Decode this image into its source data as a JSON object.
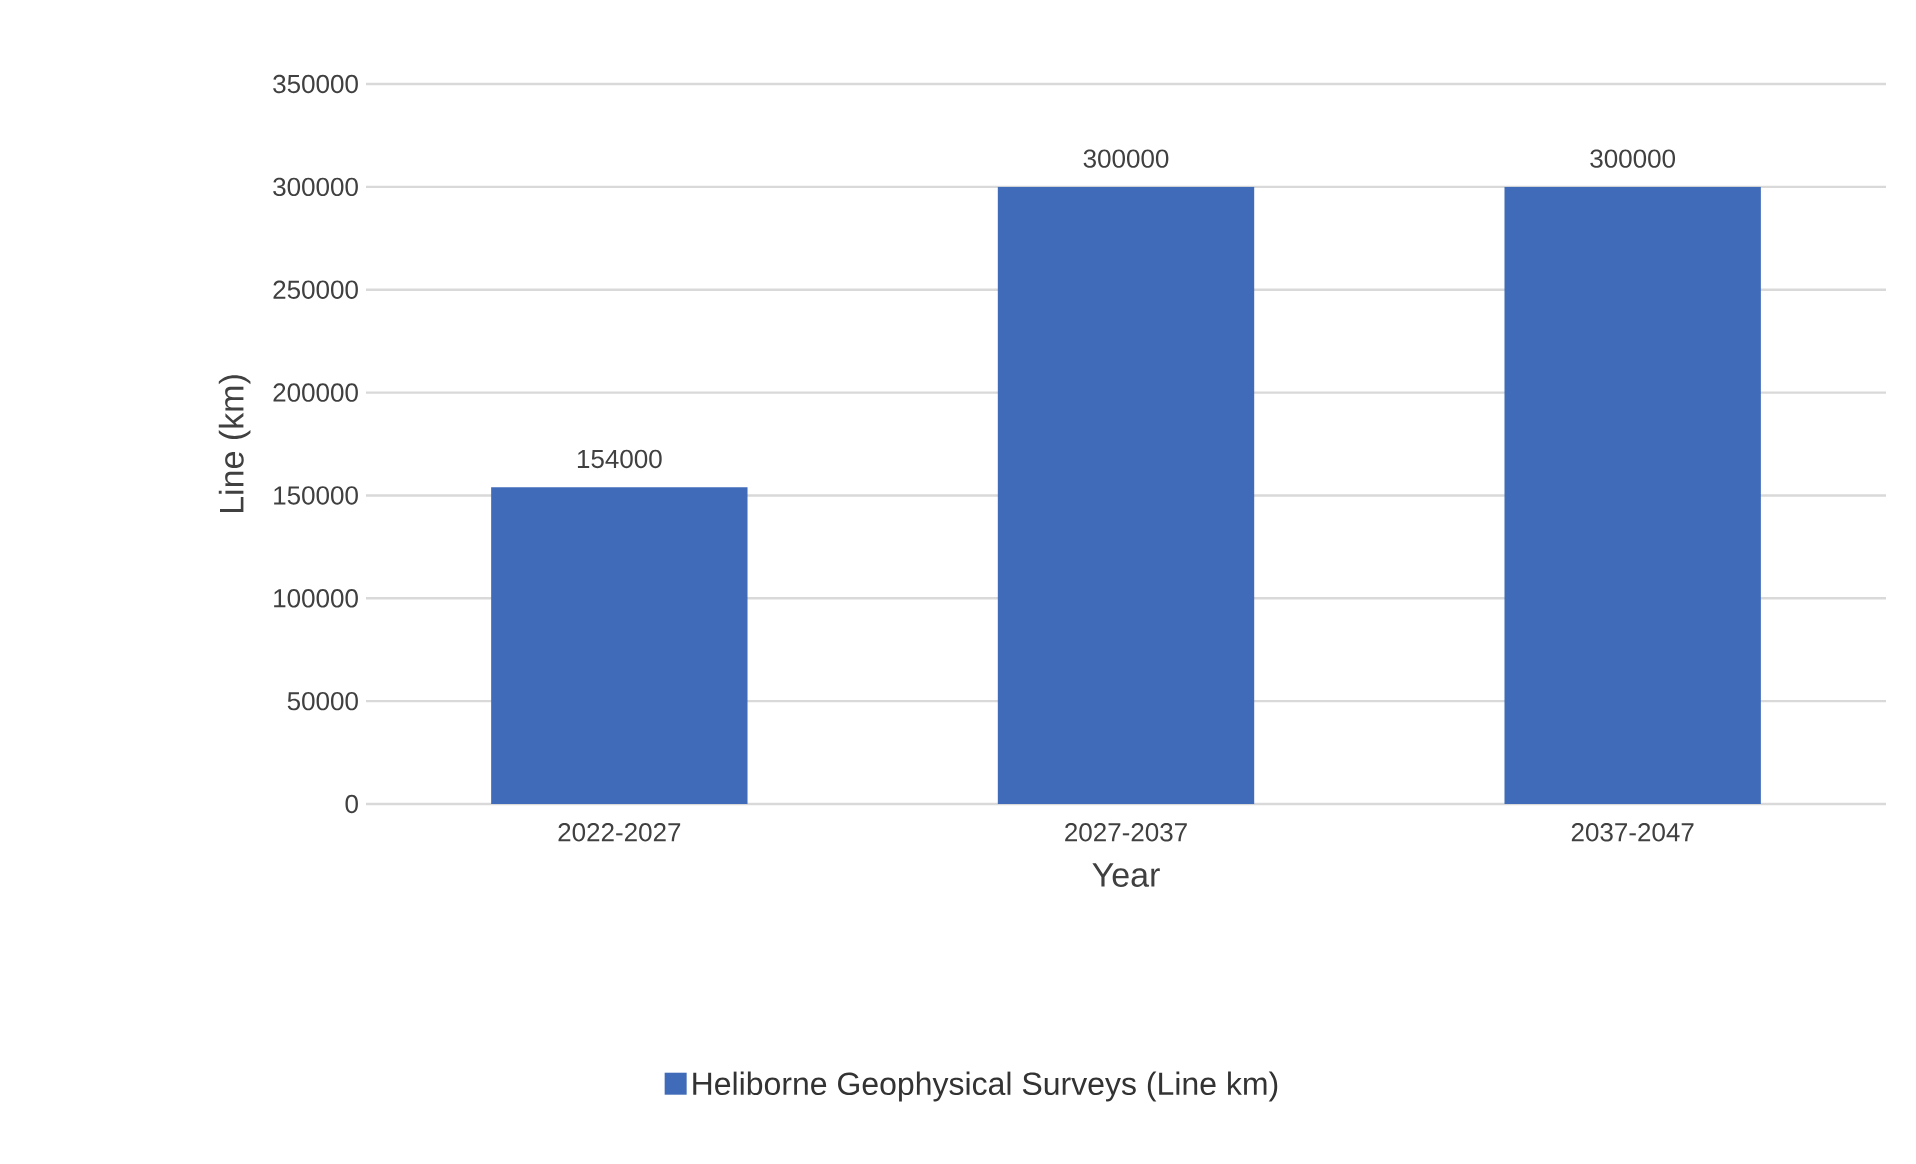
{
  "chart_data": {
    "type": "bar",
    "xlabel": "Year",
    "ylabel": "Line (km)",
    "categories": [
      "2022-2027",
      "2027-2037",
      "2037-2047"
    ],
    "series": [
      {
        "name": "Heliborne Geophysical Surveys (Line km)",
        "color": "#3f6bb8",
        "values": [
          154000,
          300000,
          300000
        ]
      }
    ],
    "ylim": [
      0,
      350000
    ],
    "yticks": [
      0,
      50000,
      100000,
      150000,
      200000,
      250000,
      300000,
      350000
    ],
    "grid": "y",
    "legend": "bottom",
    "data_labels": true
  }
}
